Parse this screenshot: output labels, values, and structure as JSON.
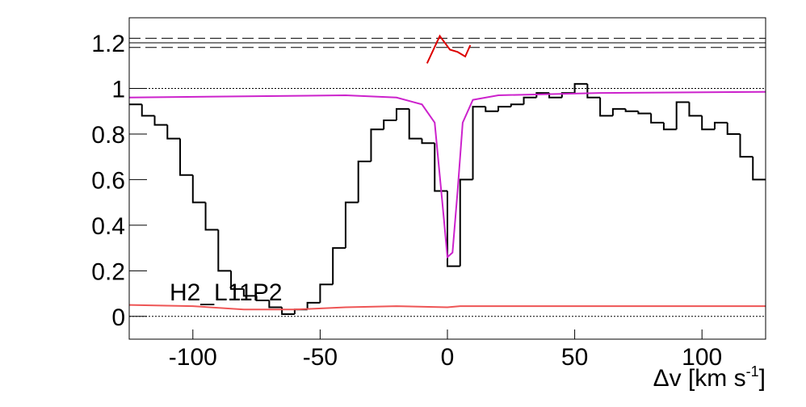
{
  "chart_data": {
    "type": "histogram",
    "annotation": "H2_L11P2",
    "xlabel": {
      "text": "Δv [km s",
      "sup": "-1",
      "end": "]"
    },
    "xlim": [
      -125,
      125
    ],
    "ylim": [
      -0.1,
      1.31
    ],
    "xticks": [
      -100,
      -50,
      0,
      50,
      100
    ],
    "yticks": [
      0,
      0.2,
      0.4,
      0.6,
      0.8,
      1,
      1.2
    ],
    "color": "#000000",
    "bins": [
      -125,
      -120,
      -115,
      -110,
      -105,
      -100,
      -95,
      -90,
      -85,
      -80,
      -75,
      -70,
      -65,
      -60,
      -55,
      -50,
      -45,
      -40,
      -35,
      -30,
      -25,
      -20,
      -15,
      -10,
      -5,
      0,
      5,
      10,
      15,
      20,
      25,
      30,
      35,
      40,
      45,
      50,
      55,
      60,
      65,
      70,
      75,
      80,
      85,
      90,
      95,
      100,
      105,
      110,
      115,
      120,
      125
    ],
    "values": [
      0.93,
      0.88,
      0.84,
      0.78,
      0.62,
      0.5,
      0.38,
      0.2,
      0.12,
      0.09,
      0.07,
      0.04,
      0.01,
      0.03,
      0.06,
      0.14,
      0.3,
      0.5,
      0.68,
      0.82,
      0.86,
      0.91,
      0.78,
      0.76,
      0.55,
      0.22,
      0.6,
      0.92,
      0.9,
      0.92,
      0.93,
      0.96,
      0.98,
      0.96,
      0.98,
      1.02,
      0.96,
      0.88,
      0.91,
      0.9,
      0.89,
      0.85,
      0.82,
      0.94,
      0.88,
      0.82,
      0.85,
      0.8,
      0.7,
      0.6
    ],
    "overlays": [
      {
        "color": "#cc22cc",
        "x": [
          -125,
          -40,
          -20,
          -10,
          -5,
          -2,
          0,
          2,
          4,
          6,
          10,
          20,
          60,
          125
        ],
        "values": [
          0.96,
          0.97,
          0.96,
          0.93,
          0.85,
          0.5,
          0.26,
          0.28,
          0.55,
          0.85,
          0.95,
          0.97,
          0.98,
          0.985
        ]
      },
      {
        "color": "#ee5555",
        "x": [
          -125,
          -100,
          -80,
          -60,
          -40,
          -20,
          0,
          5,
          20,
          60,
          100,
          125
        ],
        "values": [
          0.05,
          0.045,
          0.03,
          0.03,
          0.04,
          0.045,
          0.04,
          0.045,
          0.045,
          0.045,
          0.045,
          0.045
        ]
      },
      {
        "color": "#dd0000",
        "x": [
          -8,
          -3,
          1,
          4,
          7,
          9
        ],
        "values": [
          1.11,
          1.23,
          1.17,
          1.16,
          1.14,
          1.19
        ]
      }
    ],
    "hlines": [
      {
        "value": 1.22,
        "style": "dashed"
      },
      {
        "value": 1.2,
        "style": "solid"
      },
      {
        "value": 1.18,
        "style": "dashed"
      },
      {
        "value": 1,
        "style": "dotted"
      },
      {
        "value": 0,
        "style": "dotted"
      }
    ]
  }
}
